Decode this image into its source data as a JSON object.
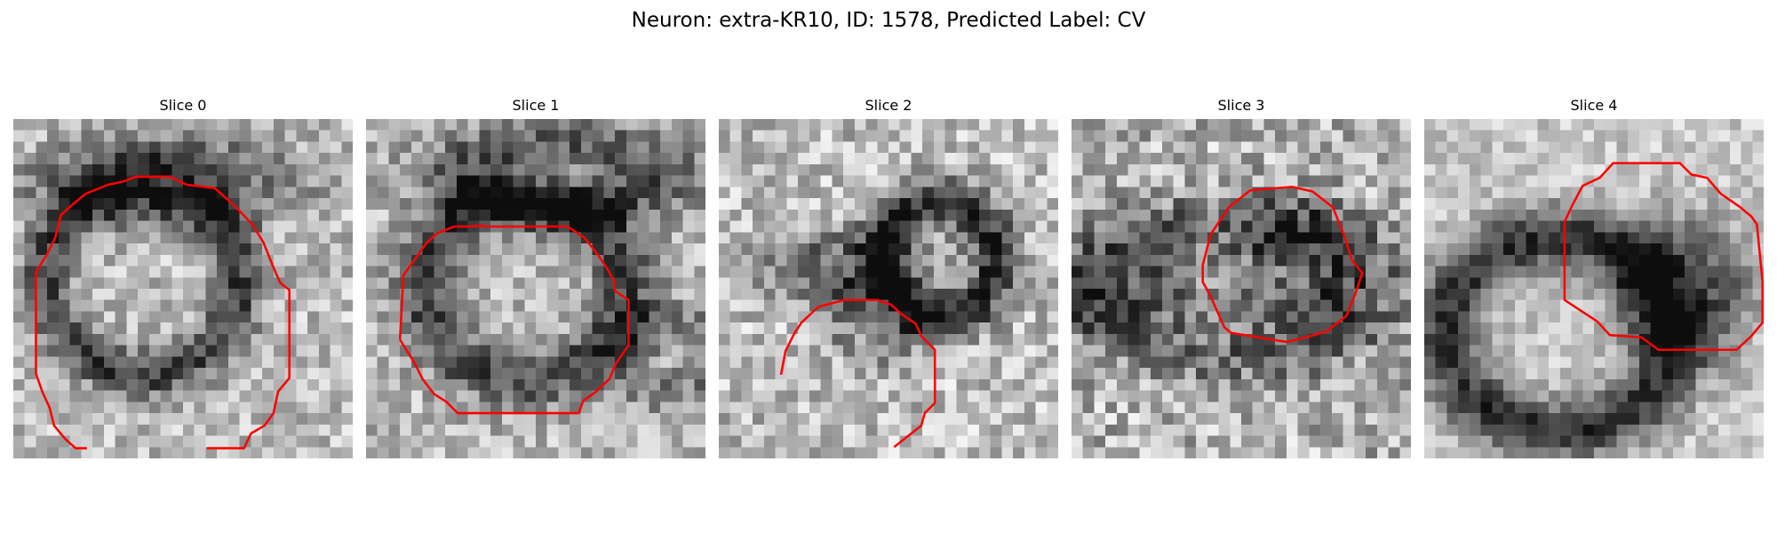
{
  "figure": {
    "title": "Neuron: extra-KR10, ID: 1578, Predicted Label: CV"
  },
  "panels": [
    {
      "title": "Slice 0"
    },
    {
      "title": "Slice 1"
    },
    {
      "title": "Slice 2"
    },
    {
      "title": "Slice 3"
    },
    {
      "title": "Slice 4"
    }
  ],
  "colors": {
    "contour": "#ff0000",
    "background": "#ffffff"
  }
}
